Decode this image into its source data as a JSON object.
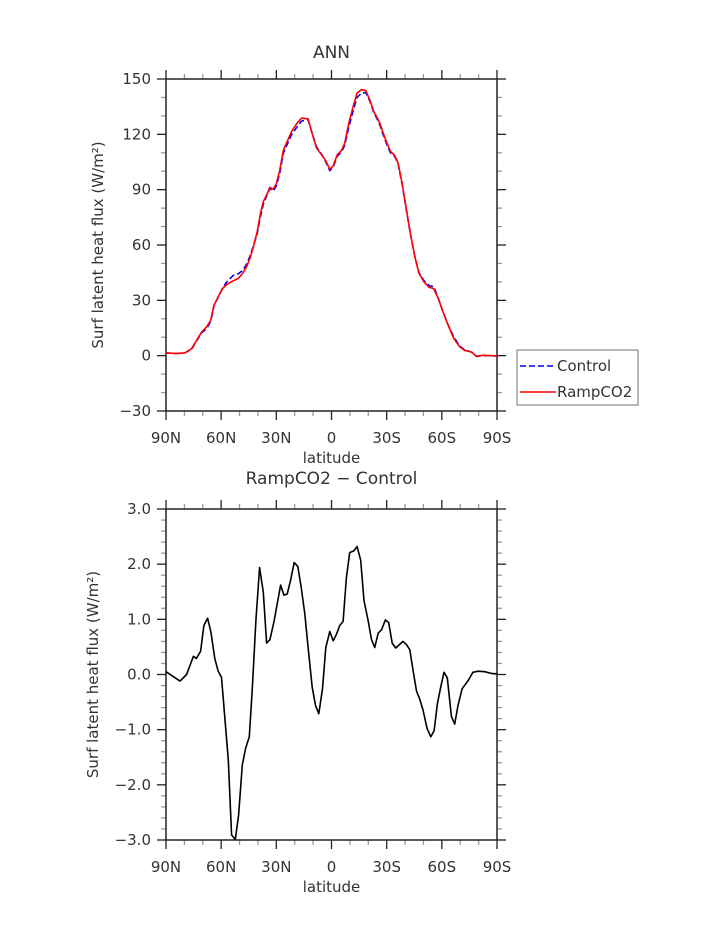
{
  "chart_data": [
    {
      "type": "line",
      "title": "ANN",
      "xlabel": "latitude",
      "ylabel": "Surf latent heat flux (W/m²)",
      "xlim": [
        90,
        -90
      ],
      "ylim": [
        -30,
        150
      ],
      "xticks": [
        90,
        60,
        30,
        0,
        -30,
        -60,
        -90
      ],
      "xtick_labels": [
        "90N",
        "60N",
        "30N",
        "0",
        "30S",
        "60S",
        "90S"
      ],
      "yticks": [
        -30,
        0,
        30,
        60,
        90,
        120,
        150
      ],
      "ytick_labels": [
        "−30",
        "0",
        "30",
        "60",
        "90",
        "120",
        "150"
      ],
      "legend": {
        "placement": "right",
        "entries": [
          "Control",
          "RampCO2"
        ]
      },
      "x": [
        90,
        84.2,
        79.7,
        76.1,
        73.3,
        70.6,
        67.9,
        65.7,
        63.9,
        61.6,
        59.2,
        56.7,
        53.4,
        50.7,
        48.3,
        46.2,
        44.4,
        42.2,
        40.4,
        38.6,
        37.1,
        35.3,
        33.5,
        31.7,
        29.9,
        28.1,
        26.2,
        24.1,
        21.7,
        19,
        16.3,
        12.7,
        10.9,
        8.1,
        5.4,
        3.1,
        0.9,
        -0.9,
        -3.1,
        -5.4,
        -7.2,
        -9.4,
        -11.8,
        -13.9,
        -16.3,
        -18.6,
        -20.8,
        -23,
        -25.9,
        -28.1,
        -30.2,
        -32.1,
        -34.4,
        -36.2,
        -38.4,
        -40.8,
        -42.9,
        -45.3,
        -47.6,
        -50.2,
        -53.1,
        -55.6,
        -58,
        -60.7,
        -63.4,
        -66.5,
        -69.7,
        -72.4,
        -76.1,
        -78.8,
        -82.4,
        -90
      ],
      "series": [
        {
          "name": "Control",
          "color": "#0000ff",
          "dash": true,
          "values": [
            1.45,
            1.2,
            1.55,
            3.5,
            8.1,
            12.4,
            14.6,
            18.4,
            27.1,
            31.8,
            36.7,
            40.3,
            43.5,
            44.4,
            46.2,
            49.5,
            53.8,
            60.3,
            66.2,
            75.5,
            82.0,
            86.6,
            90.7,
            89.3,
            92.2,
            99.1,
            109.7,
            114.6,
            119.8,
            123.7,
            127.2,
            127.9,
            121.8,
            113.1,
            109.2,
            105.1,
            100.3,
            102.3,
            108.1,
            110.3,
            114.0,
            123.9,
            133.0,
            140.1,
            142.3,
            142.6,
            138.2,
            131.9,
            126.2,
            119.8,
            114.2,
            110.0,
            108.0,
            103.9,
            92.9,
            78.5,
            65.9,
            53.8,
            45.0,
            40.8,
            38.0,
            37.4,
            31.4,
            23.7,
            16.7,
            10.1,
            5.2,
            3.1,
            2.0,
            -0.4,
            0.1,
            -0.1
          ]
        },
        {
          "name": "RampCO2",
          "color": "#ff0000",
          "dash": false,
          "values": [
            1.5,
            1.1,
            1.5,
            3.8,
            8.4,
            12.9,
            15.6,
            19.2,
            27.4,
            31.9,
            36.4,
            38.8,
            40.6,
            41.9,
            44.6,
            48.2,
            52.7,
            60.0,
            67.2,
            77.2,
            83.5,
            87.2,
            91.3,
            90.2,
            93.5,
            100.7,
            111.2,
            116.1,
            121.6,
            125.7,
            128.8,
            128.4,
            121.6,
            112.5,
            108.9,
            105.6,
            101.1,
            102.9,
            108.9,
            111.2,
            115.2,
            126.1,
            135.2,
            142.4,
            144.2,
            143.8,
            138.8,
            132.4,
            127.0,
            120.7,
            115.2,
            110.7,
            108.5,
            104.4,
            93.5,
            79.0,
            66.3,
            53.7,
            44.6,
            40.1,
            37.0,
            36.4,
            31.0,
            23.7,
            16.5,
            9.3,
            4.8,
            2.9,
            2.0,
            -0.3,
            0.2,
            -0.1
          ]
        }
      ]
    },
    {
      "type": "line",
      "title": "RampCO2 − Control",
      "xlabel": "latitude",
      "ylabel": "Surf latent heat flux (W/m²)",
      "xlim": [
        90,
        -90
      ],
      "ylim": [
        -3,
        3
      ],
      "xticks": [
        90,
        60,
        30,
        0,
        -30,
        -60,
        -90
      ],
      "xtick_labels": [
        "90N",
        "60N",
        "30N",
        "0",
        "30S",
        "60S",
        "90S"
      ],
      "yticks": [
        -3,
        -2,
        -1,
        0,
        1,
        2,
        3
      ],
      "ytick_labels": [
        "−3.0",
        "−2.0",
        "−1.0",
        "0.0",
        "1.0",
        "2.0",
        "3.0"
      ],
      "x": [
        90,
        82.4,
        78.8,
        75.1,
        73.5,
        71.2,
        69.4,
        67.4,
        65.6,
        63.4,
        61.6,
        59.8,
        56.1,
        54.3,
        52.3,
        50.5,
        48.5,
        46.7,
        44.7,
        43.1,
        41.1,
        39.1,
        37.1,
        35.3,
        33.5,
        31.3,
        29.2,
        27.7,
        25.9,
        24.1,
        22.3,
        20.3,
        18.3,
        16.5,
        14.5,
        12.7,
        10.5,
        8.7,
        6.9,
        4.9,
        3.1,
        0.9,
        -0.9,
        -2.7,
        -4.5,
        -6.3,
        -8.1,
        -9.9,
        -12.1,
        -13.9,
        -15.9,
        -17.7,
        -19.9,
        -21.7,
        -23.5,
        -25.4,
        -27.2,
        -29.3,
        -31.1,
        -33,
        -34.9,
        -38.9,
        -40.8,
        -42.6,
        -44.4,
        -46.2,
        -48,
        -49.8,
        -52,
        -54,
        -55.8,
        -57.6,
        -59.4,
        -61.2,
        -63,
        -65.2,
        -67,
        -68.8,
        -71,
        -74.3,
        -76.9,
        -79.7,
        -83.3,
        -86.9,
        -90
      ],
      "series": [
        {
          "name": "RampCO2 - Control",
          "color": "#000000",
          "values": [
            0.05,
            -0.12,
            0,
            0.33,
            0.29,
            0.42,
            0.89,
            1.02,
            0.77,
            0.28,
            0.06,
            -0.05,
            -1.55,
            -2.91,
            -2.99,
            -2.55,
            -1.64,
            -1.34,
            -1.13,
            -0.29,
            0.98,
            1.94,
            1.49,
            0.57,
            0.63,
            0.95,
            1.34,
            1.62,
            1.44,
            1.46,
            1.7,
            2.03,
            1.96,
            1.58,
            1.1,
            0.49,
            -0.23,
            -0.56,
            -0.71,
            -0.26,
            0.49,
            0.78,
            0.61,
            0.73,
            0.89,
            0.96,
            1.76,
            2.21,
            2.24,
            2.32,
            2.07,
            1.34,
            0.98,
            0.64,
            0.49,
            0.75,
            0.81,
            0.99,
            0.94,
            0.57,
            0.48,
            0.6,
            0.54,
            0.45,
            0.07,
            -0.3,
            -0.45,
            -0.65,
            -0.98,
            -1.13,
            -1.02,
            -0.53,
            -0.23,
            0.04,
            -0.06,
            -0.76,
            -0.9,
            -0.56,
            -0.26,
            -0.11,
            0.04,
            0.06,
            0.05,
            0.02,
            0.01
          ]
        }
      ]
    }
  ]
}
